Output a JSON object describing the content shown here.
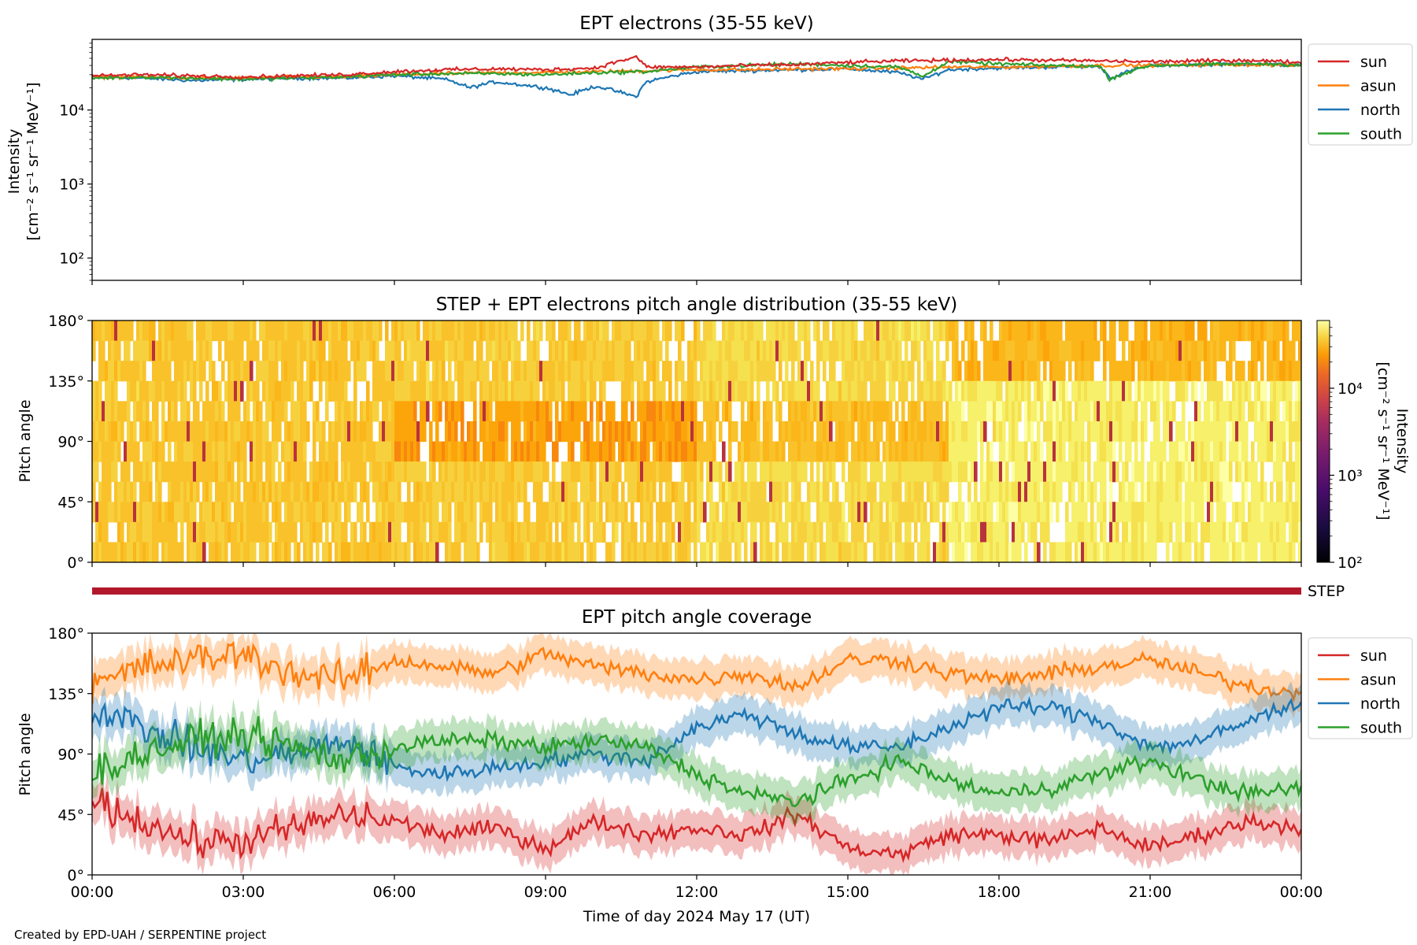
{
  "colors": {
    "sun": "#d62728",
    "asun": "#ff7f0e",
    "north": "#1f77b4",
    "south": "#2ca02c",
    "step_bar": "#b2182b"
  },
  "footer": "Created by EPD-UAH / SERPENTINE project",
  "chart_data": [
    {
      "type": "line",
      "title": "EPT electrons (35-55 keV)",
      "ylabel_line1": "Intensity",
      "ylabel_line2": "[cm⁻² s⁻¹ sr⁻¹ MeV⁻¹]",
      "yscale": "log",
      "ylim": [
        50,
        90000
      ],
      "yticks": [
        {
          "value": 100,
          "label": "10²"
        },
        {
          "value": 1000,
          "label": "10³"
        },
        {
          "value": 10000,
          "label": "10⁴"
        }
      ],
      "xlim": [
        0,
        24
      ],
      "xticks": [
        0,
        3,
        6,
        9,
        12,
        15,
        18,
        21,
        24
      ],
      "x_ticklabels_visible": false,
      "legend": "outside-right",
      "series": [
        {
          "name": "sun",
          "color_key": "sun",
          "x": [
            0,
            1,
            2,
            3,
            4,
            5,
            6,
            7,
            8,
            9,
            10,
            10.8,
            11,
            12,
            13,
            14,
            15,
            16,
            17,
            18,
            19,
            20,
            21,
            22,
            23,
            24
          ],
          "y": [
            29000,
            30000,
            29000,
            28000,
            29000,
            30000,
            33000,
            35000,
            36000,
            35000,
            37000,
            52000,
            38000,
            38000,
            40000,
            41000,
            44000,
            46000,
            47000,
            48000,
            47000,
            46000,
            45000,
            46000,
            47000,
            44000
          ]
        },
        {
          "name": "asun",
          "color_key": "asun",
          "x": [
            0,
            1,
            2,
            3,
            4,
            5,
            6,
            7,
            8,
            9,
            10,
            11,
            12,
            13,
            14,
            15,
            16,
            17,
            18,
            19,
            20,
            21,
            22,
            23,
            24
          ],
          "y": [
            28000,
            28000,
            27000,
            27000,
            28000,
            28000,
            30000,
            31000,
            32000,
            32000,
            33000,
            34000,
            35000,
            35000,
            36000,
            36000,
            37000,
            38000,
            38000,
            39000,
            40000,
            40000,
            41000,
            41000,
            40000
          ]
        },
        {
          "name": "north",
          "color_key": "north",
          "x": [
            0,
            1,
            2,
            3,
            4,
            5,
            6,
            7,
            7.5,
            8,
            9,
            9.5,
            10,
            10.8,
            11,
            12,
            13,
            14,
            15,
            16,
            16.5,
            17,
            18,
            19,
            20,
            20.2,
            21,
            22,
            23,
            24
          ],
          "y": [
            28000,
            27000,
            25000,
            26000,
            27000,
            27000,
            29000,
            26000,
            20000,
            24000,
            20000,
            16000,
            21000,
            15000,
            24000,
            33000,
            34000,
            35000,
            36000,
            32000,
            26000,
            35000,
            37000,
            38000,
            39000,
            27000,
            40000,
            41000,
            42000,
            40000
          ]
        },
        {
          "name": "south",
          "color_key": "south",
          "x": [
            0,
            1,
            2,
            3,
            4,
            5,
            6,
            7,
            8,
            9,
            10,
            11,
            12,
            13,
            14,
            15,
            16,
            16.5,
            17,
            18,
            19,
            20,
            20.2,
            21,
            22,
            23,
            24
          ],
          "y": [
            27000,
            28000,
            27000,
            26000,
            27000,
            28000,
            30000,
            31000,
            31000,
            30000,
            32000,
            33000,
            38000,
            40000,
            42000,
            40000,
            38000,
            28000,
            45000,
            42000,
            40000,
            39000,
            26000,
            40000,
            41000,
            42000,
            41000
          ]
        }
      ]
    },
    {
      "type": "heatmap",
      "title": "STEP + EPT electrons pitch angle distribution (35-55 keV)",
      "ylabel": "Pitch angle",
      "ylim": [
        0,
        180
      ],
      "yticks": [
        {
          "value": 0,
          "label": "0°"
        },
        {
          "value": 45,
          "label": "45°"
        },
        {
          "value": 90,
          "label": "90°"
        },
        {
          "value": 135,
          "label": "135°"
        },
        {
          "value": 180,
          "label": "180°"
        }
      ],
      "xlim": [
        0,
        24
      ],
      "x_ticklabels_visible": false,
      "colorscale": "inferno",
      "colorbar": {
        "label_line1": "Intensity",
        "label_line2": "[cm⁻² s⁻¹ sr⁻¹ MeV⁻¹]",
        "scale": "log",
        "range": [
          100,
          60000
        ],
        "ticks": [
          {
            "value": 100,
            "label": "10²"
          },
          {
            "value": 1000,
            "label": "10³"
          },
          {
            "value": 10000,
            "label": "10⁴"
          }
        ]
      }
    },
    {
      "type": "bar",
      "label": "STEP",
      "coverage": [
        0,
        24
      ],
      "color_key": "step_bar"
    },
    {
      "type": "line",
      "title": "EPT pitch angle coverage",
      "ylabel": "Pitch angle",
      "xlabel": "Time of day 2024 May 17 (UT)",
      "ylim": [
        0,
        180
      ],
      "yticks": [
        {
          "value": 0,
          "label": "0°"
        },
        {
          "value": 45,
          "label": "45°"
        },
        {
          "value": 90,
          "label": "90°"
        },
        {
          "value": 135,
          "label": "135°"
        },
        {
          "value": 180,
          "label": "180°"
        }
      ],
      "xlim": [
        0,
        24
      ],
      "xticks": [
        {
          "value": 0,
          "label": "00:00"
        },
        {
          "value": 3,
          "label": "03:00"
        },
        {
          "value": 6,
          "label": "06:00"
        },
        {
          "value": 9,
          "label": "09:00"
        },
        {
          "value": 12,
          "label": "12:00"
        },
        {
          "value": 15,
          "label": "15:00"
        },
        {
          "value": 18,
          "label": "18:00"
        },
        {
          "value": 21,
          "label": "21:00"
        },
        {
          "value": 24,
          "label": "00:00"
        }
      ],
      "legend": "outside-right",
      "series": [
        {
          "name": "sun",
          "color_key": "sun",
          "x": [
            0,
            1,
            2,
            3,
            4,
            5,
            6,
            7,
            8,
            9,
            10,
            11,
            12,
            13,
            14,
            15,
            16,
            17,
            18,
            19,
            20,
            21,
            22,
            23,
            24
          ],
          "y": [
            55,
            40,
            25,
            25,
            35,
            45,
            40,
            30,
            35,
            20,
            40,
            30,
            35,
            30,
            45,
            20,
            15,
            30,
            30,
            25,
            35,
            20,
            30,
            40,
            35
          ]
        },
        {
          "name": "asun",
          "color_key": "asun",
          "x": [
            0,
            1,
            2,
            3,
            4,
            5,
            6,
            7,
            8,
            9,
            10,
            11,
            12,
            13,
            14,
            15,
            16,
            17,
            18,
            19,
            20,
            21,
            22,
            23,
            24
          ],
          "y": [
            140,
            155,
            160,
            165,
            150,
            145,
            160,
            155,
            150,
            165,
            155,
            150,
            145,
            150,
            140,
            160,
            160,
            150,
            145,
            150,
            155,
            160,
            150,
            140,
            135
          ]
        },
        {
          "name": "north",
          "color_key": "north",
          "x": [
            0,
            1,
            2,
            3,
            4,
            5,
            6,
            7,
            8,
            9,
            10,
            11,
            12,
            13,
            14,
            15,
            16,
            17,
            18,
            19,
            20,
            21,
            22,
            23,
            24
          ],
          "y": [
            125,
            110,
            95,
            85,
            90,
            100,
            80,
            75,
            80,
            85,
            90,
            85,
            110,
            120,
            105,
            95,
            95,
            110,
            125,
            125,
            115,
            95,
            100,
            115,
            130
          ]
        },
        {
          "name": "south",
          "color_key": "south",
          "x": [
            0,
            1,
            2,
            3,
            4,
            5,
            6,
            7,
            8,
            9,
            10,
            11,
            12,
            13,
            14,
            15,
            16,
            17,
            18,
            19,
            20,
            21,
            22,
            23,
            24
          ],
          "y": [
            75,
            90,
            100,
            105,
            95,
            85,
            95,
            100,
            100,
            95,
            100,
            95,
            75,
            60,
            55,
            70,
            85,
            70,
            60,
            65,
            75,
            85,
            70,
            60,
            65
          ]
        }
      ]
    }
  ]
}
